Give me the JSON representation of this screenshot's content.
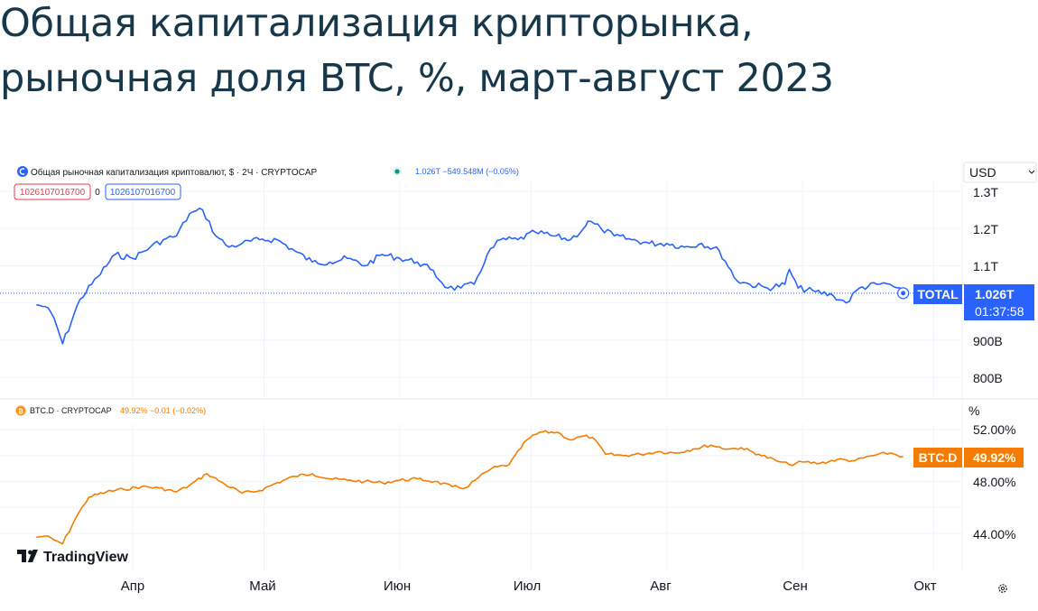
{
  "title": {
    "line1": "Общая капитализация крипторынка,",
    "line2": "рыночная доля BTC, %, март-август 2023"
  },
  "colors": {
    "total_line": "#2962ff",
    "btcd_line": "#f57c00",
    "title": "#16384a",
    "grid": "#f0f3fa",
    "red_box": "#f23645"
  },
  "currency_selector": "USD",
  "total_panel": {
    "legend_icon": "crypto-total-icon",
    "legend": "Общая рыночная капитализация криптовалют, $ · 2Ч · CRYPTOCAP",
    "legend_value": "1.026T −549.548M (−0.05%)",
    "box_left": "1026107016700",
    "box_middle": "0",
    "box_right": "1026107016700",
    "ticks": [
      "1.3T",
      "1.2T",
      "1.1T",
      "900B",
      "800B"
    ],
    "badge_label": "TOTAL",
    "badge_value": "1.026T",
    "badge_time": "01:37:58"
  },
  "btcd_panel": {
    "legend_icon": "bitcoin-icon",
    "legend": "BTC.D · CRYPTOCAP",
    "legend_value": "49.92% −0.01 (−0.02%)",
    "unit": "%",
    "ticks": [
      "52.00%",
      "48.00%",
      "44.00%"
    ],
    "badge_label": "BTC.D",
    "badge_value": "49.92%"
  },
  "months": [
    "Апр",
    "Май",
    "Июн",
    "Июл",
    "Авг",
    "Сен",
    "Окт"
  ],
  "logo_text": "TradingView",
  "chart_data": [
    {
      "type": "line",
      "name": "TOTAL",
      "yscale": "linear",
      "ylim": [
        750000000000,
        1350000000000
      ],
      "last_value": 1026107016700,
      "x": [
        "2023-03-10",
        "2023-03-12",
        "2023-03-14",
        "2023-03-16",
        "2023-03-20",
        "2023-03-24",
        "2023-03-28",
        "2023-04-01",
        "2023-04-05",
        "2023-04-08",
        "2023-04-11",
        "2023-04-14",
        "2023-04-17",
        "2023-04-20",
        "2023-04-23",
        "2023-04-26",
        "2023-04-30",
        "2023-05-04",
        "2023-05-08",
        "2023-05-12",
        "2023-05-16",
        "2023-05-20",
        "2023-05-24",
        "2023-05-28",
        "2023-06-01",
        "2023-06-05",
        "2023-06-08",
        "2023-06-12",
        "2023-06-15",
        "2023-06-18",
        "2023-06-21",
        "2023-06-24",
        "2023-06-28",
        "2023-07-02",
        "2023-07-06",
        "2023-07-10",
        "2023-07-13",
        "2023-07-14",
        "2023-07-17",
        "2023-07-20",
        "2023-07-24",
        "2023-07-28",
        "2023-08-01",
        "2023-08-05",
        "2023-08-09",
        "2023-08-13",
        "2023-08-17",
        "2023-08-20",
        "2023-08-24",
        "2023-08-28",
        "2023-08-29",
        "2023-08-31",
        "2023-09-04",
        "2023-09-08",
        "2023-09-11",
        "2023-09-14",
        "2023-09-18",
        "2023-09-21",
        "2023-09-24"
      ],
      "y": [
        995000000000,
        990000000000,
        960000000000,
        890000000000,
        1010000000000,
        1070000000000,
        1130000000000,
        1120000000000,
        1150000000000,
        1170000000000,
        1180000000000,
        1240000000000,
        1250000000000,
        1180000000000,
        1150000000000,
        1160000000000,
        1170000000000,
        1170000000000,
        1140000000000,
        1110000000000,
        1110000000000,
        1120000000000,
        1100000000000,
        1130000000000,
        1120000000000,
        1110000000000,
        1090000000000,
        1040000000000,
        1040000000000,
        1050000000000,
        1130000000000,
        1170000000000,
        1170000000000,
        1190000000000,
        1180000000000,
        1170000000000,
        1200000000000,
        1220000000000,
        1200000000000,
        1180000000000,
        1170000000000,
        1160000000000,
        1160000000000,
        1150000000000,
        1160000000000,
        1140000000000,
        1060000000000,
        1050000000000,
        1040000000000,
        1050000000000,
        1090000000000,
        1040000000000,
        1030000000000,
        1020000000000,
        1000000000000,
        1040000000000,
        1050000000000,
        1050000000000,
        1026000000000
      ]
    },
    {
      "type": "line",
      "name": "BTC.D",
      "yscale": "linear",
      "ylim": [
        42.0,
        53.5
      ],
      "last_value": 49.92,
      "x": [
        "2023-03-10",
        "2023-03-12",
        "2023-03-14",
        "2023-03-16",
        "2023-03-19",
        "2023-03-22",
        "2023-03-26",
        "2023-03-30",
        "2023-04-03",
        "2023-04-07",
        "2023-04-11",
        "2023-04-14",
        "2023-04-18",
        "2023-04-22",
        "2023-04-26",
        "2023-04-30",
        "2023-05-04",
        "2023-05-08",
        "2023-05-12",
        "2023-05-16",
        "2023-05-20",
        "2023-05-24",
        "2023-05-28",
        "2023-06-01",
        "2023-06-05",
        "2023-06-09",
        "2023-06-13",
        "2023-06-16",
        "2023-06-19",
        "2023-06-22",
        "2023-06-26",
        "2023-06-30",
        "2023-07-03",
        "2023-07-07",
        "2023-07-10",
        "2023-07-13",
        "2023-07-15",
        "2023-07-18",
        "2023-07-22",
        "2023-07-26",
        "2023-07-30",
        "2023-08-03",
        "2023-08-07",
        "2023-08-11",
        "2023-08-15",
        "2023-08-18",
        "2023-08-22",
        "2023-08-26",
        "2023-08-29",
        "2023-09-01",
        "2023-09-05",
        "2023-09-09",
        "2023-09-13",
        "2023-09-17",
        "2023-09-21",
        "2023-09-24"
      ],
      "y": [
        43.7,
        43.8,
        43.5,
        43.2,
        45.2,
        46.8,
        47.2,
        47.4,
        47.6,
        47.5,
        47.2,
        47.7,
        48.6,
        47.8,
        47.1,
        47.3,
        47.9,
        48.4,
        48.6,
        48.2,
        48.1,
        48.0,
        47.9,
        48.1,
        48.2,
        48.0,
        47.6,
        47.5,
        48.3,
        49.0,
        49.3,
        51.2,
        51.8,
        51.8,
        51.2,
        51.5,
        51.4,
        50.1,
        50.0,
        50.1,
        50.3,
        50.2,
        50.5,
        50.8,
        50.5,
        50.6,
        50.1,
        49.6,
        49.3,
        49.5,
        49.4,
        49.7,
        49.6,
        50.0,
        50.2,
        49.92
      ]
    }
  ]
}
